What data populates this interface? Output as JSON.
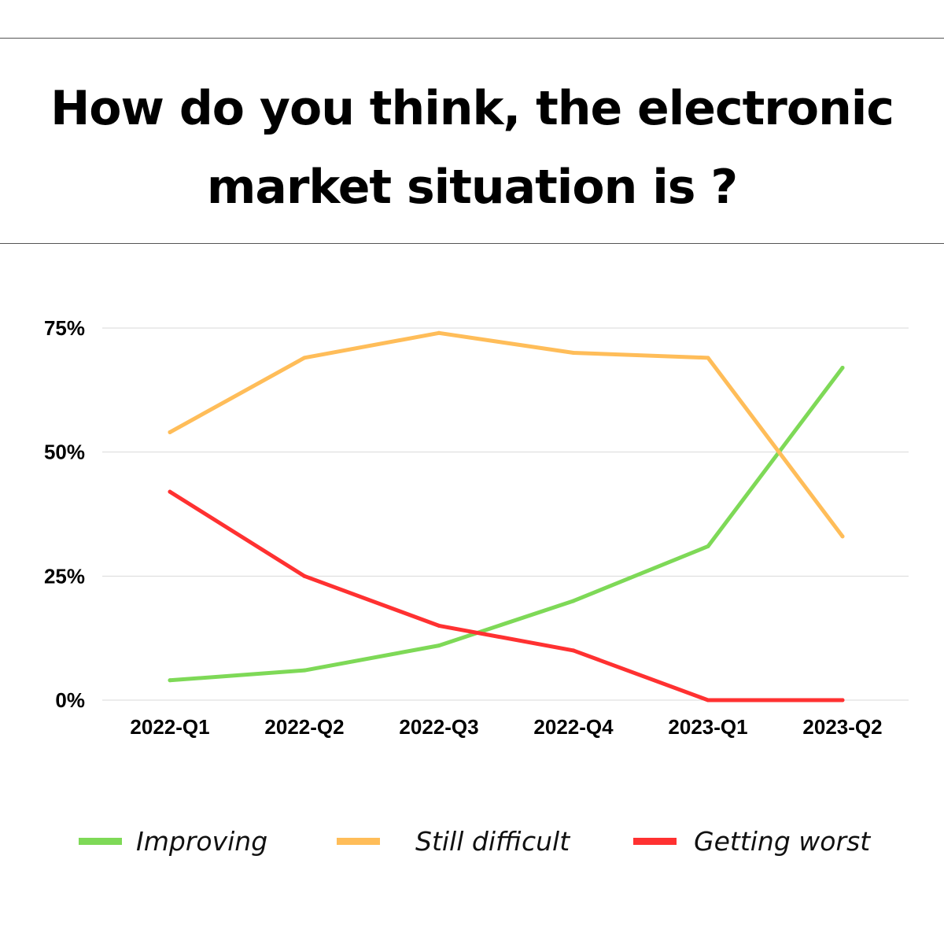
{
  "chart_data": {
    "type": "line",
    "title": [
      "How do you think, the electronic",
      "market situation is ?"
    ],
    "categories": [
      "2022-Q1",
      "2022-Q2",
      "2022-Q3",
      "2022-Q4",
      "2023-Q1",
      "2023-Q2"
    ],
    "yticks": [
      "0%",
      "25%",
      "50%",
      "75%"
    ],
    "ylim": [
      0,
      75
    ],
    "grid": true,
    "legend_position": "bottom",
    "series": [
      {
        "name": "Improving",
        "color": "#7ED957",
        "values": [
          4,
          6,
          11,
          20,
          31,
          67
        ]
      },
      {
        "name": "Still difficult",
        "color": "#FFBD59",
        "values": [
          54,
          69,
          74,
          70,
          69,
          33
        ]
      },
      {
        "name": "Getting worst",
        "color": "#FF3131",
        "values": [
          42,
          25,
          15,
          10,
          0,
          0
        ]
      }
    ]
  }
}
